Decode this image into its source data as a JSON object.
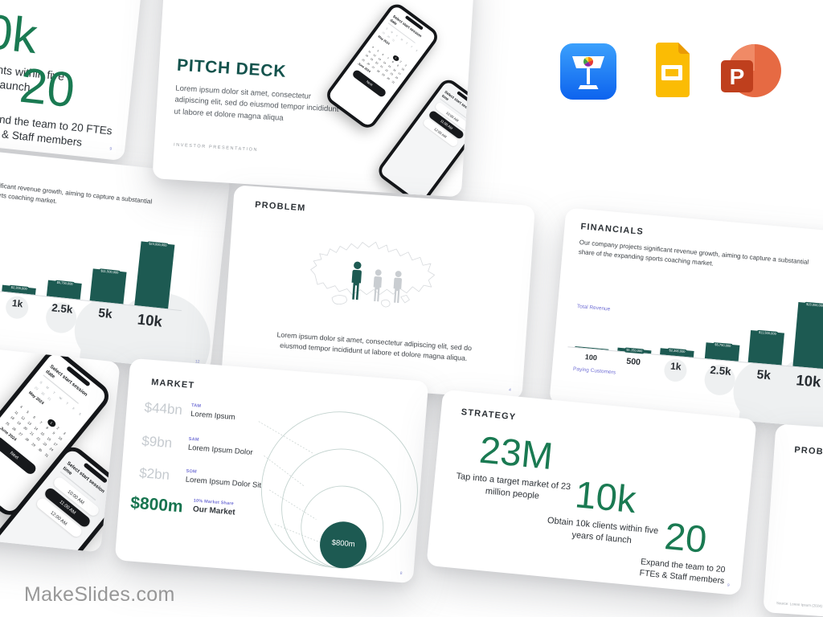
{
  "brand": {
    "name": "MakeSlides.com"
  },
  "formats": {
    "keynote": "Apple Keynote",
    "google_slides": "Google Slides",
    "powerpoint": "Microsoft PowerPoint"
  },
  "slides": {
    "pitch": {
      "title": "PITCH DECK",
      "body": "Lorem ipsum dolor sit amet, consectetur adipiscing elit, sed do eiusmod tempor incididunt ut labore et dolore magna aliqua",
      "footer": "INVESTOR PRESENTATION"
    },
    "problem": {
      "title": "PROBLEM",
      "body": "Lorem ipsum dolor sit amet, consectetur adipiscing elit, sed do eiusmod tempor incididunt ut labore et dolore magna aliqua.",
      "source": "Source: Lorem Ipsum (2024)",
      "page": "4"
    },
    "financials": {
      "title": "FINANCIALS",
      "description": "Our company projects significant revenue growth, aiming to capture a substantial share of the expanding sports coaching market.",
      "y_axis_label": "Total Revenue",
      "x_axis_label": "Paying Customers",
      "page": "12"
    },
    "market": {
      "title": "MARKET",
      "rows": [
        {
          "value": "$44bn",
          "tag": "TAM",
          "name": "Lorem Ipsum"
        },
        {
          "value": "$9bn",
          "tag": "SAM",
          "name": "Lorem Ipsum Dolor"
        },
        {
          "value": "$2bn",
          "tag": "SOM",
          "name": "Lorem Ipsum Dolor Sit"
        },
        {
          "value": "$800m",
          "tag": "10% Market Share",
          "name": "Our Market"
        }
      ],
      "bubble_label": "$800m",
      "page": "8"
    },
    "strategy": {
      "title": "STRATEGY",
      "items": [
        {
          "value": "23M",
          "caption": "Tap into a target market of 23 million people"
        },
        {
          "value": "10k",
          "caption": "Obtain 10k clients within five years of launch"
        },
        {
          "value": "20",
          "caption": "Expand the team to 20 FTEs & Staff members"
        }
      ],
      "page": "9"
    }
  },
  "phones": {
    "date_screen": {
      "title": "Select start session date",
      "weekdays": [
        "S",
        "M",
        "T",
        "W",
        "T",
        "F",
        "S"
      ],
      "prev_days": [
        "29",
        "30",
        "31"
      ],
      "month_current": "May 2024",
      "month_next": "June 2024",
      "selected_day": 1,
      "days_in_month": 31,
      "button": "Next"
    },
    "time_screen": {
      "title": "Select start session time",
      "options": [
        "10:00 AM",
        "11:00 AM",
        "12:00 AM"
      ],
      "selected": "11:00 AM"
    }
  },
  "chart_data": {
    "type": "bar",
    "title": "FINANCIALS",
    "categories": [
      "100",
      "500",
      "1k",
      "2.5k",
      "5k",
      "10k"
    ],
    "values": [
      230000,
      1150000,
      2300000,
      5750000,
      11500000,
      23000000
    ],
    "value_labels": [
      "",
      "$1,150,000",
      "$2,300,000",
      "$5,750,000",
      "$11,500,000",
      "$23,000,000"
    ],
    "xlabel": "Paying Customers",
    "ylabel": "Total Revenue",
    "ylim": [
      0,
      23000000
    ],
    "grid": false,
    "legend": false,
    "bar_color": "#1d5a52",
    "appears_on": [
      "financials-left-slide",
      "financials-right-slide"
    ]
  },
  "colors": {
    "teal": "#1d5a52",
    "green": "#1a7a52",
    "purple": "#7473d6",
    "light_gray_value": "#c6cbd0",
    "brand_gray": "#9a9a9a"
  }
}
